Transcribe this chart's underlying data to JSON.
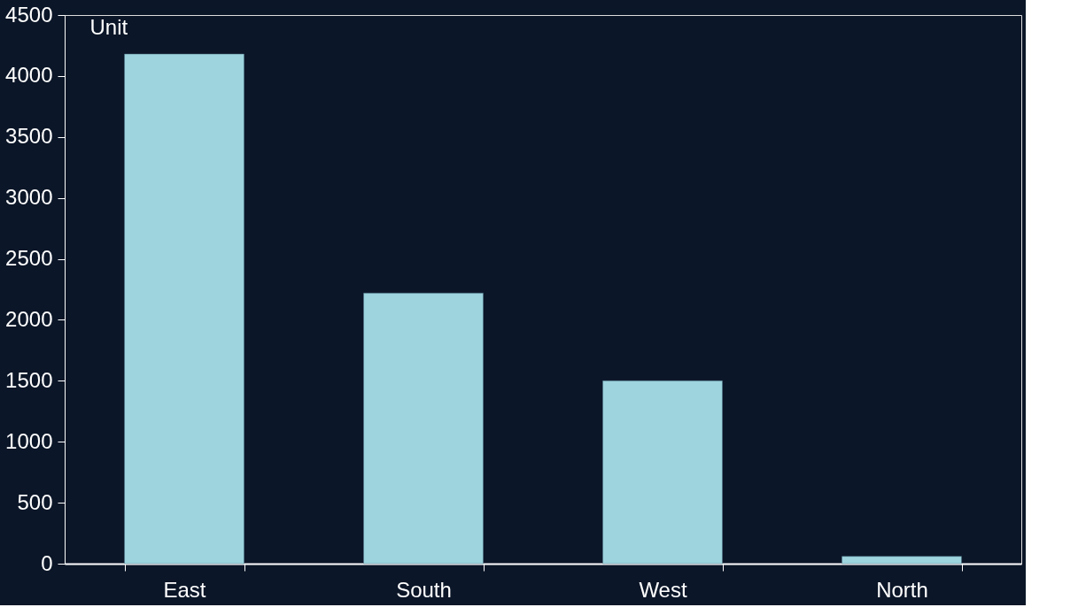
{
  "chart_data": {
    "type": "bar",
    "ylabel": "Unit",
    "categories": [
      "East",
      "South",
      "West",
      "North"
    ],
    "series": [
      {
        "color": "#9dd4de",
        "values": [
          4180,
          2220,
          1500,
          60
        ]
      }
    ],
    "ylim": [
      0,
      4500
    ],
    "yticks": [
      0,
      500,
      1000,
      1500,
      2000,
      2500,
      3000,
      3500,
      4000,
      4500
    ],
    "grid": false,
    "legend": false
  }
}
